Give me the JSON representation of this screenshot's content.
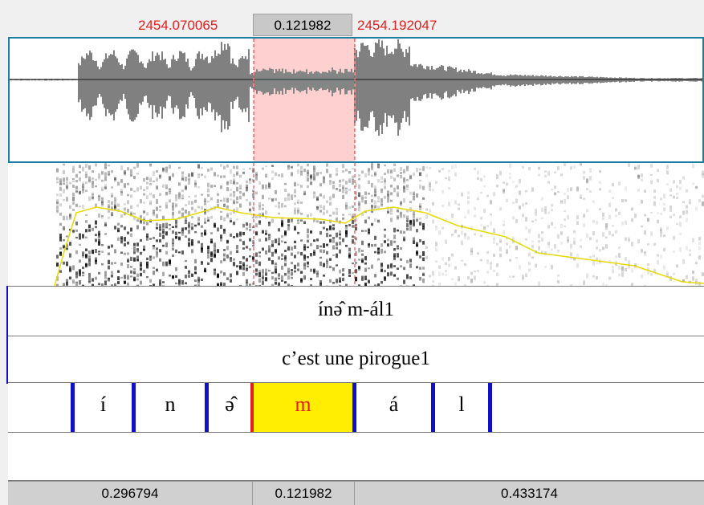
{
  "selection": {
    "start_time": "2454.070065",
    "duration": "0.121982",
    "end_time": "2454.192047"
  },
  "tiers": {
    "word_tier": {
      "text": "ínə̂ m-ál1"
    },
    "translation_tier": {
      "text": "c’est une pirogue1"
    },
    "phone_tier": {
      "segments": [
        {
          "label": "í"
        },
        {
          "label": "n"
        },
        {
          "label": "ə̂"
        },
        {
          "label": "m",
          "selected": true
        },
        {
          "label": "á"
        },
        {
          "label": "l"
        }
      ]
    }
  },
  "durations": {
    "before": "0.296794",
    "selected": "0.121982",
    "after": "0.433174"
  },
  "colors": {
    "selection_fill": "#ffd0d0",
    "selected_segment": "#ffee00",
    "boundary": "#1010c8",
    "time_text": "#e02020",
    "intensity": "#e8d800"
  }
}
